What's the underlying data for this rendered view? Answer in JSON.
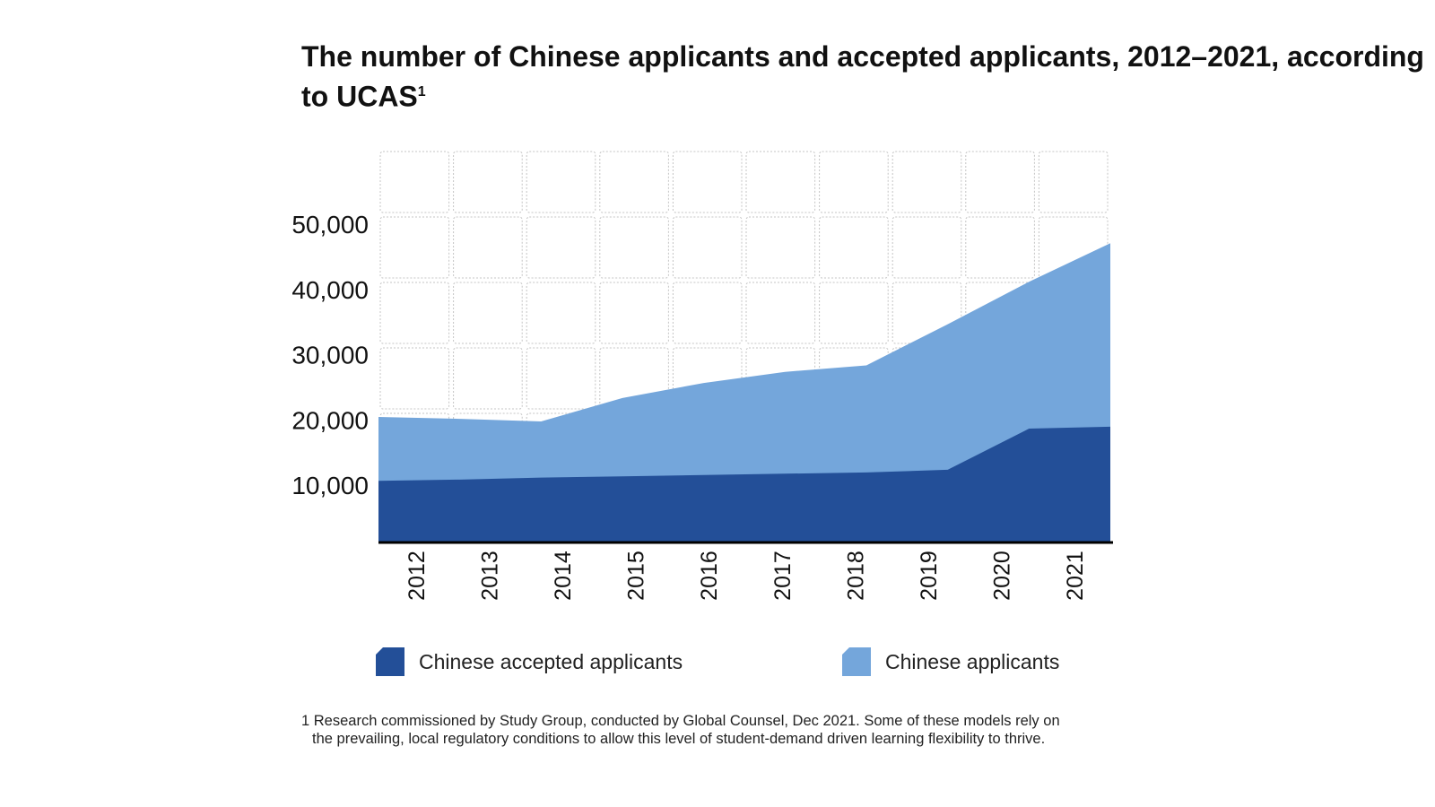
{
  "chart_data": {
    "type": "area",
    "title": "The number of Chinese applicants and accepted applicants, 2012–2021, according to UCAS",
    "title_footnote_mark": "1",
    "categories": [
      "2012",
      "2013",
      "2014",
      "2015",
      "2016",
      "2017",
      "2018",
      "2019",
      "2020",
      "2021"
    ],
    "series": [
      {
        "name": "Chinese accepted applicants",
        "color": "#234f98",
        "values": [
          9300,
          9500,
          9800,
          10000,
          10200,
          10400,
          10600,
          11000,
          17300,
          17600
        ]
      },
      {
        "name": "Chinese applicants",
        "color": "#74a6db",
        "values": [
          19100,
          18800,
          18400,
          22000,
          24300,
          26000,
          27000,
          33300,
          39800,
          45700
        ]
      }
    ],
    "yticks": [
      10000,
      20000,
      30000,
      40000,
      50000
    ],
    "ytick_labels": [
      "10,000",
      "20,000",
      "30,000",
      "40,000",
      "50,000"
    ],
    "ylim": [
      0,
      60000
    ],
    "grid": true,
    "legend_position": "bottom",
    "xlabel": "",
    "ylabel": ""
  },
  "footnote": {
    "line1": "1 Research commissioned by Study Group, conducted by Global Counsel, Dec 2021. Some of these models rely on",
    "line2": "the prevailing, local regulatory conditions to allow this level of student-demand driven learning flexibility to thrive."
  }
}
